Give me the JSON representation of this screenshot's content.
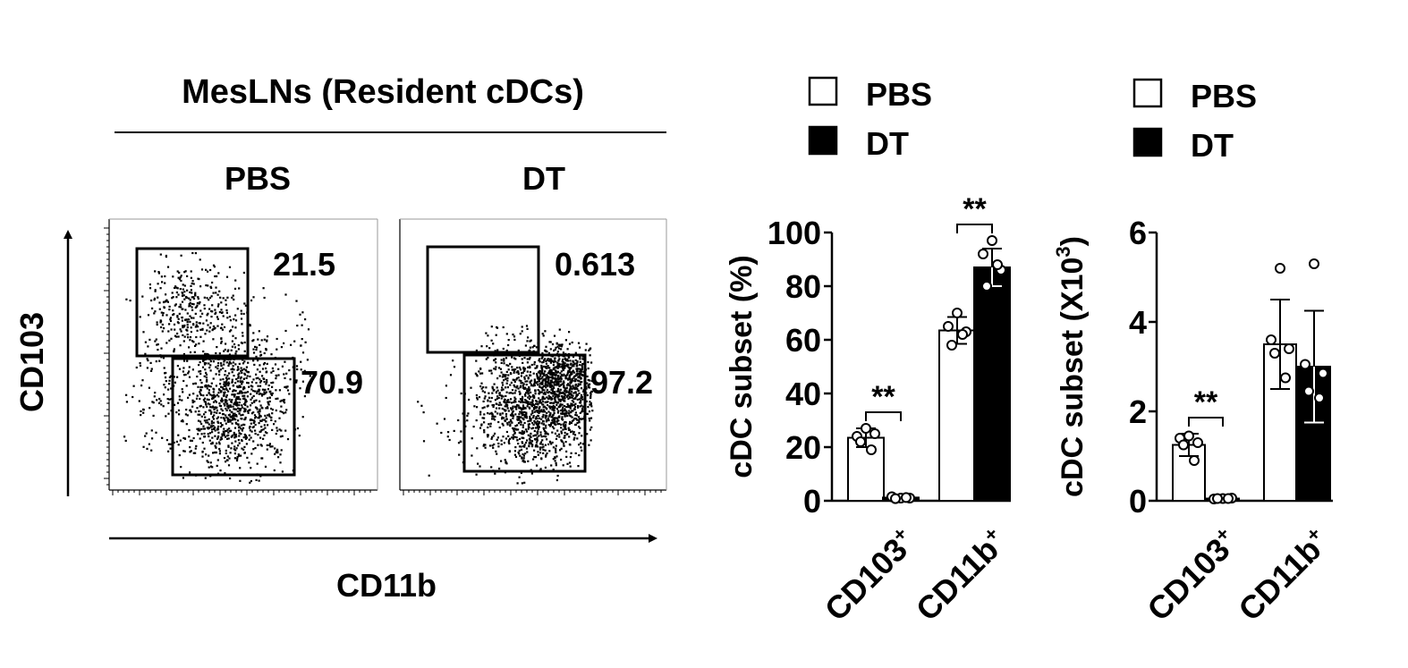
{
  "flow_panel": {
    "title": "MesLNs  (Resident cDCs)",
    "plots": [
      {
        "label": "PBS",
        "gate_upper_pct": "21.5",
        "gate_lower_pct": "70.9",
        "upper_gate_density": "medium",
        "lower_gate_density": "high"
      },
      {
        "label": "DT",
        "gate_upper_pct": "0.613",
        "gate_lower_pct": "97.2",
        "upper_gate_density": "sparse",
        "lower_gate_density": "very high"
      }
    ],
    "x_axis_label": "CD11b",
    "y_axis_label": "CD103"
  },
  "chart_data": [
    {
      "type": "bar",
      "ylabel": "cDC subset (%)",
      "ylim": [
        0,
        100
      ],
      "yticks": [
        0,
        20,
        40,
        60,
        80,
        100
      ],
      "categories": [
        "CD103",
        "CD11b"
      ],
      "category_superscript": "+",
      "legend": {
        "entries": [
          "PBS",
          "DT"
        ],
        "colors": [
          "#ffffff",
          "#000000"
        ],
        "placement": "top"
      },
      "series": [
        {
          "name": "PBS",
          "values": [
            23.5,
            63.5
          ],
          "errors": [
            3.5,
            5.0
          ],
          "points": [
            [
              27,
              24,
              25,
              22,
              19
            ],
            [
              70,
              65,
              63,
              58,
              62
            ]
          ]
        },
        {
          "name": "DT",
          "values": [
            1.2,
            87.0
          ],
          "errors": [
            0.5,
            7.0
          ],
          "points": [
            [
              1,
              1.5,
              1,
              0.8,
              1.2
            ],
            [
              97,
              92,
              86,
              80,
              88
            ]
          ]
        }
      ],
      "significance": [
        "**",
        "**"
      ]
    },
    {
      "type": "bar",
      "ylabel": "cDC subset (X10",
      "ylabel_superscript": "3",
      "ylabel_end": ")",
      "ylim": [
        0,
        6
      ],
      "yticks": [
        0,
        2,
        4,
        6
      ],
      "categories": [
        "CD103",
        "CD11b"
      ],
      "category_superscript": "+",
      "legend": {
        "entries": [
          "PBS",
          "DT"
        ],
        "colors": [
          "#ffffff",
          "#000000"
        ],
        "placement": "top"
      },
      "series": [
        {
          "name": "PBS",
          "values": [
            1.25,
            3.5
          ],
          "errors": [
            0.25,
            1.0
          ],
          "points": [
            [
              1.45,
              1.4,
              1.3,
              1.25,
              0.9
            ],
            [
              5.2,
              3.6,
              3.4,
              3.3,
              2.75
            ]
          ]
        },
        {
          "name": "DT",
          "values": [
            0.05,
            3.0
          ],
          "errors": [
            0.02,
            1.25
          ],
          "points": [
            [
              0.05,
              0.04,
              0.06,
              0.05,
              0.05
            ],
            [
              5.3,
              3.05,
              2.85,
              2.45,
              2.3
            ]
          ]
        }
      ],
      "significance": [
        "**",
        null
      ]
    }
  ]
}
